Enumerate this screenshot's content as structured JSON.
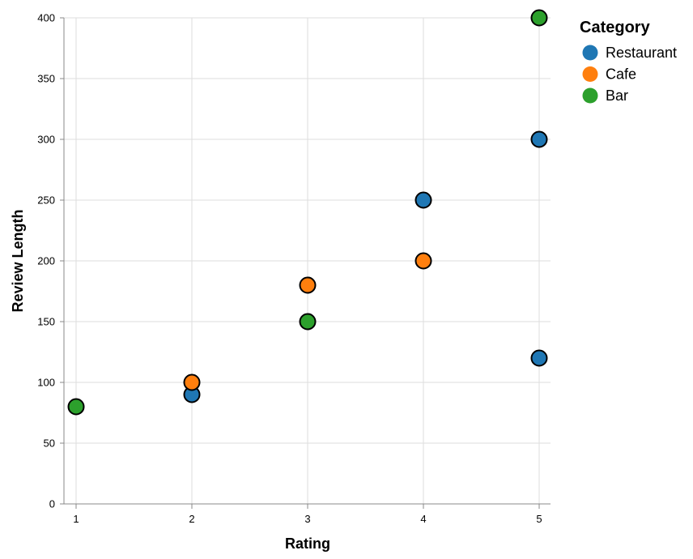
{
  "chart_data": {
    "type": "scatter",
    "xlabel": "Rating",
    "ylabel": "Review Length",
    "xlim": [
      1,
      5
    ],
    "ylim": [
      0,
      400
    ],
    "x_ticks": [
      1,
      2,
      3,
      4,
      5
    ],
    "y_ticks": [
      0,
      50,
      100,
      150,
      200,
      250,
      300,
      350,
      400
    ],
    "grid": true,
    "legend": {
      "title": "Category",
      "placement": "top-right"
    },
    "series": [
      {
        "name": "Restaurant",
        "color": "#1f77b4",
        "points": [
          {
            "x": 2,
            "y": 90
          },
          {
            "x": 4,
            "y": 250
          },
          {
            "x": 5,
            "y": 300
          },
          {
            "x": 5,
            "y": 120
          }
        ]
      },
      {
        "name": "Cafe",
        "color": "#ff7f0e",
        "points": [
          {
            "x": 2,
            "y": 100
          },
          {
            "x": 3,
            "y": 180
          },
          {
            "x": 4,
            "y": 200
          }
        ]
      },
      {
        "name": "Bar",
        "color": "#2ca02c",
        "points": [
          {
            "x": 1,
            "y": 80
          },
          {
            "x": 3,
            "y": 150
          },
          {
            "x": 5,
            "y": 400
          }
        ]
      }
    ]
  }
}
